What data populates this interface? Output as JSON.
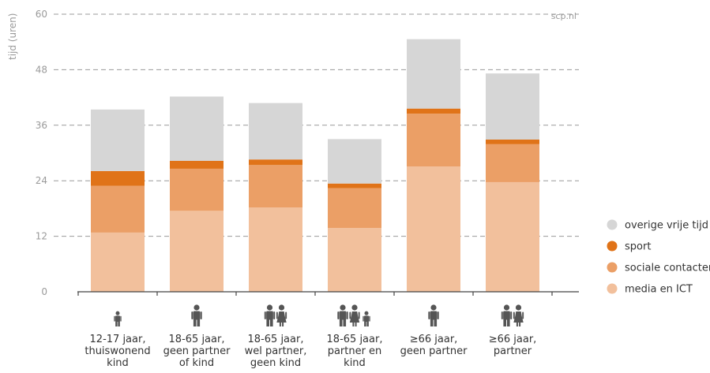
{
  "chart_data": {
    "type": "bar",
    "stacked": true,
    "ylabel": "tijd (uren)",
    "source": "scp.nl",
    "ylim": [
      0,
      60
    ],
    "yticks": [
      0,
      12,
      24,
      36,
      48,
      60
    ],
    "grid": true,
    "legend_position": "right",
    "categories": [
      [
        "12-17 jaar,",
        "thuiswonend",
        "kind"
      ],
      [
        "18-65 jaar,",
        "geen partner",
        "of kind"
      ],
      [
        "18-65 jaar,",
        "wel partner,",
        "geen kind"
      ],
      [
        "18-65 jaar,",
        "partner en",
        "kind"
      ],
      [
        "≥66 jaar,",
        "geen partner"
      ],
      [
        "≥66 jaar,",
        "partner"
      ]
    ],
    "category_icons": [
      [
        "child"
      ],
      [
        "man"
      ],
      [
        "man",
        "woman"
      ],
      [
        "man",
        "woman",
        "child"
      ],
      [
        "man"
      ],
      [
        "man",
        "woman"
      ]
    ],
    "series": [
      {
        "name": "media en ICT",
        "color": "#f2c09c",
        "values": [
          12.8,
          17.5,
          18.2,
          13.8,
          27.1,
          23.7
        ]
      },
      {
        "name": "sociale contacten",
        "color": "#eb9f66",
        "values": [
          10.1,
          9.1,
          9.2,
          8.6,
          11.4,
          8.2
        ]
      },
      {
        "name": "sport",
        "color": "#e07318",
        "values": [
          3.2,
          1.7,
          1.2,
          1.0,
          1.1,
          1.0
        ]
      },
      {
        "name": "overige vrije tijd",
        "color": "#d6d6d6",
        "values": [
          13.3,
          13.9,
          12.2,
          9.6,
          15.0,
          14.3
        ]
      }
    ]
  }
}
